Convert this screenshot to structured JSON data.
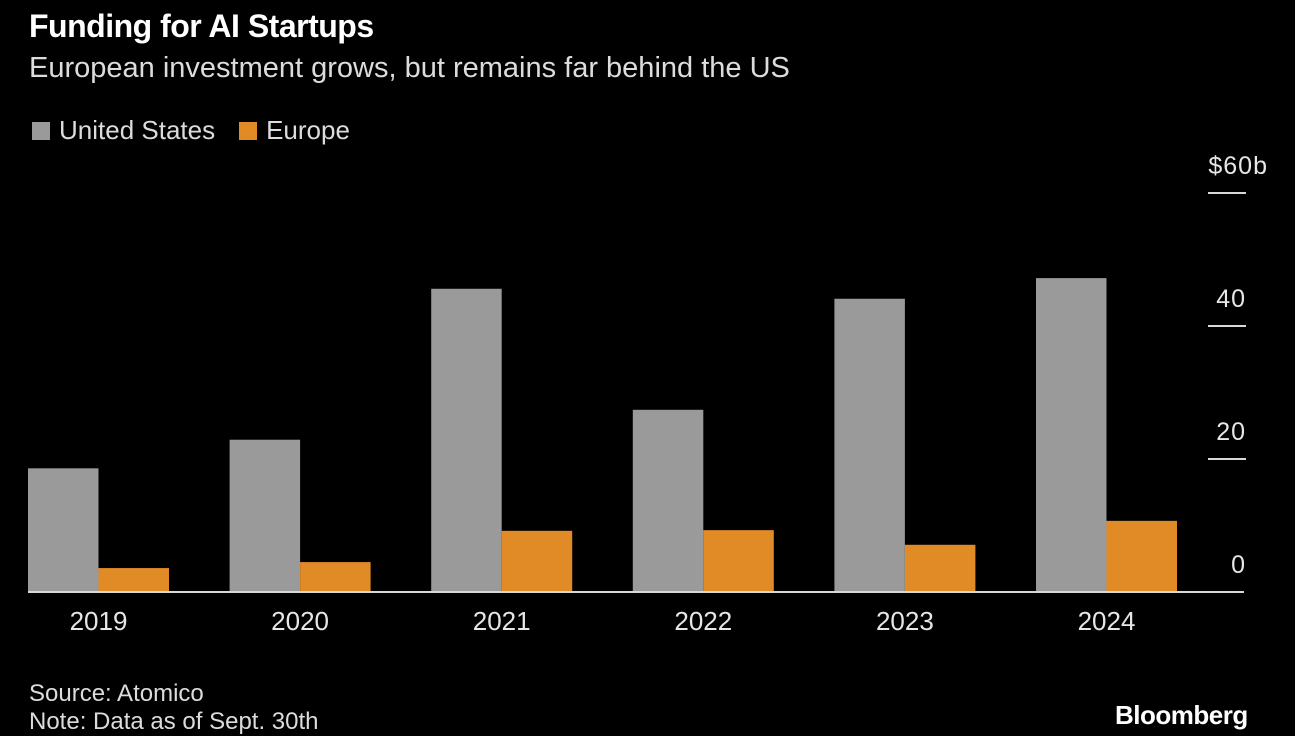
{
  "header": {
    "title": "Funding for AI Startups",
    "subtitle": "European investment grows, but remains far behind the US"
  },
  "legend": [
    {
      "label": "United States",
      "color": "#9a9a9a"
    },
    {
      "label": "Europe",
      "color": "#e08b26"
    }
  ],
  "footer": {
    "source": "Source: Atomico",
    "note": "Note: Data as of Sept. 30th",
    "brand": "Bloomberg"
  },
  "chart_data": {
    "type": "bar",
    "title": "Funding for AI Startups",
    "subtitle": "European investment grows, but remains far behind the US",
    "xlabel": "",
    "ylabel": "",
    "categories": [
      "2019",
      "2020",
      "2021",
      "2022",
      "2023",
      "2024"
    ],
    "series": [
      {
        "name": "United States",
        "color": "#9a9a9a",
        "values": [
          18.6,
          22.9,
          45.6,
          27.4,
          44.1,
          47.2
        ]
      },
      {
        "name": "Europe",
        "color": "#e08b26",
        "values": [
          3.6,
          4.5,
          9.2,
          9.3,
          7.1,
          10.7
        ]
      }
    ],
    "ylim": [
      0,
      60
    ],
    "yticks": [
      0,
      20,
      40,
      60
    ],
    "ytick_labels": [
      "0",
      "20",
      "40",
      "$60b"
    ],
    "y_axis_position": "right",
    "grid": false,
    "legend_position": "top-left"
  }
}
